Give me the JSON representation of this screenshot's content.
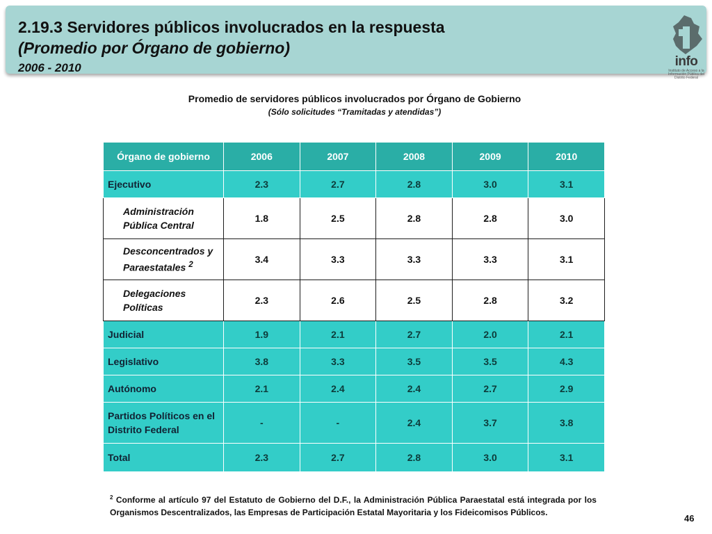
{
  "header": {
    "title": "2.19.3 Servidores públicos involucrados en la respuesta",
    "subtitle": "(Promedio por Órgano de gobierno)",
    "years": "2006 - 2010",
    "logo_text": "info",
    "logo_small": "Instituto de Acceso a la Información Pública del Distrito Federal"
  },
  "table_title": "Promedio de servidores públicos involucrados por Órgano de Gobierno",
  "table_subtitle": "(Sólo solicitudes “Tramitadas y atendidas”)",
  "table": {
    "headers": [
      "Órgano de gobierno",
      "2006",
      "2007",
      "2008",
      "2009",
      "2010"
    ],
    "rows": [
      {
        "type": "main",
        "label": "Ejecutivo",
        "values": [
          "2.3",
          "2.7",
          "2.8",
          "3.0",
          "3.1"
        ]
      },
      {
        "type": "sub",
        "label": "Administración Pública Central",
        "values": [
          "1.8",
          "2.5",
          "2.8",
          "2.8",
          "3.0"
        ]
      },
      {
        "type": "sub",
        "label": "Desconcentrados y Paraestatales",
        "sup": "2",
        "values": [
          "3.4",
          "3.3",
          "3.3",
          "3.3",
          "3.1"
        ]
      },
      {
        "type": "sub",
        "label": "Delegaciones Políticas",
        "values": [
          "2.3",
          "2.6",
          "2.5",
          "2.8",
          "3.2"
        ]
      },
      {
        "type": "main",
        "label": "Judicial",
        "values": [
          "1.9",
          "2.1",
          "2.7",
          "2.0",
          "2.1"
        ]
      },
      {
        "type": "main",
        "label": "Legislativo",
        "values": [
          "3.8",
          "3.3",
          "3.5",
          "3.5",
          "4.3"
        ]
      },
      {
        "type": "main",
        "label": "Autónomo",
        "values": [
          "2.1",
          "2.4",
          "2.4",
          "2.7",
          "2.9"
        ]
      },
      {
        "type": "main",
        "label": "Partidos Políticos en el Distrito Federal",
        "values": [
          "-",
          "-",
          "2.4",
          "3.7",
          "3.8"
        ]
      },
      {
        "type": "total",
        "label": "Total",
        "values": [
          "2.3",
          "2.7",
          "2.8",
          "3.0",
          "3.1"
        ]
      }
    ]
  },
  "footnote": {
    "marker": "2",
    "text": "Conforme al artículo 97 del Estatuto de Gobierno del D.F., la Administración Pública Paraestatal está integrada por los Organismos Descentralizados, las Empresas de Participación Estatal Mayoritaria y los Fideicomisos Públicos."
  },
  "page_number": "46",
  "colors": {
    "header_band": "#a7d5d3",
    "table_header": "#2aaea6",
    "row_main": "#33cdc8"
  }
}
